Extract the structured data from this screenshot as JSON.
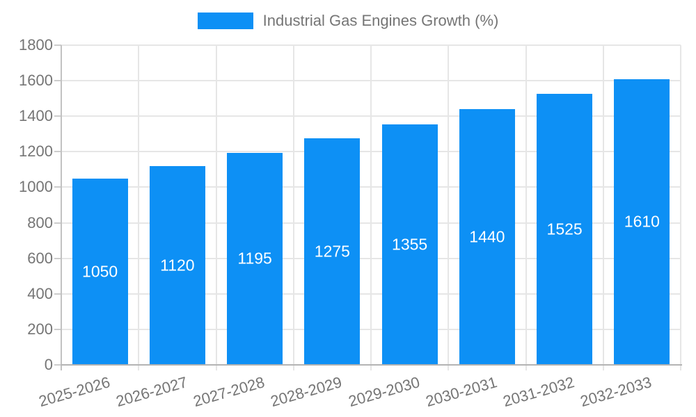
{
  "chart_data": {
    "type": "bar",
    "title": "",
    "legend_label": "Industrial Gas Engines Growth (%)",
    "legend_position": "top-center",
    "categories": [
      "2025-2026",
      "2026-2027",
      "2027-2028",
      "2028-2029",
      "2029-2030",
      "2030-2031",
      "2031-2032",
      "2032-2033"
    ],
    "values": [
      1050,
      1120,
      1195,
      1275,
      1355,
      1440,
      1525,
      1610
    ],
    "xlabel": "",
    "ylabel": "",
    "ylim": [
      0,
      1800
    ],
    "yticks": [
      0,
      200,
      400,
      600,
      800,
      1000,
      1200,
      1400,
      1600,
      1800
    ],
    "grid": true,
    "x_label_rotation_deg": -16,
    "colors": {
      "bar": "#0d90f5",
      "bar_value_text": "#ffffff",
      "axis_text": "#757575",
      "gridline": "#e6e6e6",
      "x_axis_line": "#b3b3b3",
      "y_axis_line": "#c2c2c2",
      "tick_mark": "#cccccc",
      "background": "#ffffff"
    }
  }
}
